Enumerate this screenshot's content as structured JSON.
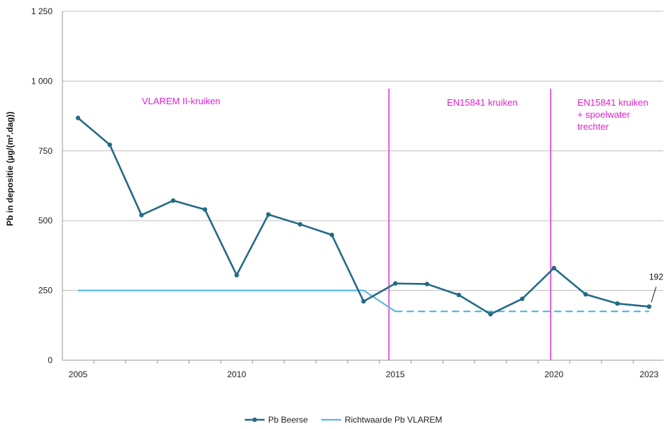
{
  "chart_data": {
    "type": "line",
    "title": "",
    "xlabel": "",
    "ylabel": "Pb in depositie (µg/(m².dag))",
    "xlim": [
      2005,
      2023
    ],
    "ylim": [
      0,
      1250
    ],
    "x_ticks": [
      2005,
      2010,
      2015,
      2020,
      2023
    ],
    "x_tick_labels": [
      "2005",
      "2010",
      "2015",
      "2020",
      "2023"
    ],
    "y_ticks": [
      0,
      250,
      500,
      750,
      1000,
      1250
    ],
    "y_tick_labels": [
      "0",
      "250",
      "500",
      "750",
      "1 000",
      "1 250"
    ],
    "grid": "horizontal",
    "legend_position": "bottom",
    "series": [
      {
        "name": "Pb Beerse",
        "color": "#236b86",
        "marker": "circle",
        "x": [
          2005,
          2006,
          2007,
          2008,
          2009,
          2010,
          2011,
          2012,
          2013,
          2014,
          2015,
          2016,
          2017,
          2018,
          2019,
          2020,
          2021,
          2022,
          2023
        ],
        "values": [
          868,
          772,
          520,
          572,
          540,
          305,
          522,
          487,
          449,
          211,
          275,
          273,
          234,
          165,
          220,
          330,
          236,
          203,
          192
        ]
      },
      {
        "name": "Richtwaarde Pb VLAREM",
        "color": "#5ab7e0",
        "segments": [
          {
            "style": "solid",
            "x": [
              2005,
              2014,
              2015
            ],
            "values": [
              250,
              250,
              175
            ]
          },
          {
            "style": "dashed",
            "x": [
              2015,
              2023
            ],
            "values": [
              175,
              175
            ]
          }
        ]
      }
    ],
    "vertical_lines": [
      {
        "x": 2014.8,
        "color": "#e020d0"
      },
      {
        "x": 2019.9,
        "color": "#e020d0"
      }
    ],
    "annotations": [
      {
        "text_lines": [
          "VLAREM II-kruiken"
        ],
        "color": "#e020d0"
      },
      {
        "text_lines": [
          "EN15841 kruiken"
        ],
        "color": "#e020d0"
      },
      {
        "text_lines": [
          "EN15841 kruiken",
          "+ spoelwater",
          "trechter"
        ],
        "color": "#e020d0"
      }
    ],
    "data_labels": [
      {
        "text": "192",
        "x": 2023,
        "value": 192
      }
    ]
  }
}
